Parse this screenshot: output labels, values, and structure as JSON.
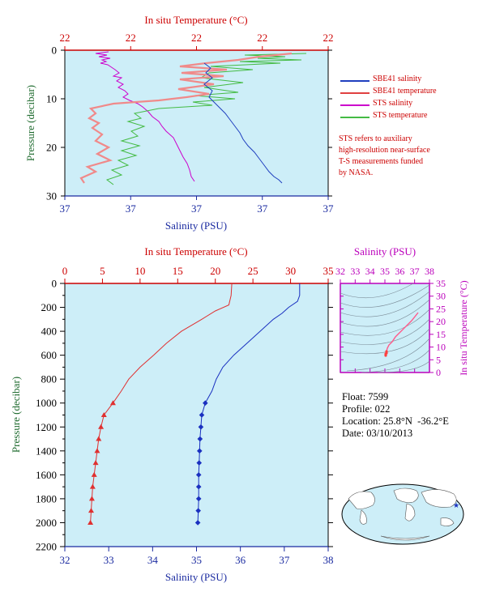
{
  "chart_data": [
    {
      "type": "line",
      "panel": "top",
      "top_axis_title": "In situ Temperature (°C)",
      "bottom_axis_title": "Salinity (PSU)",
      "ylabel": "Pressure (decibar)",
      "temp_ticks": [
        "22",
        "22",
        "22",
        "22",
        "22"
      ],
      "sal_ticks": [
        "37",
        "37",
        "37",
        "37",
        "37"
      ],
      "pressure_ticks": [
        "0",
        "10",
        "20",
        "30"
      ],
      "ylim": [
        0,
        30
      ],
      "grid": false,
      "legend_position": "right",
      "legend": [
        {
          "name": "SBE41 salinity",
          "color": "#1f3fbf"
        },
        {
          "name": "SBE41 temperature",
          "color": "#e04040"
        },
        {
          "name": "STS salinity",
          "color": "#cc00cc"
        },
        {
          "name": "STS temperature",
          "color": "#44bb44"
        }
      ],
      "note": [
        "STS refers to auxiliary",
        "high-resolution near-surface",
        "T-S measurements funded",
        "by NASA."
      ]
    },
    {
      "type": "line",
      "panel": "main",
      "top_axis_title": "In situ Temperature (°C)",
      "bottom_axis_title": "Salinity (PSU)",
      "ylabel": "Pressure (decibar)",
      "xlim_temperature": [
        0,
        35
      ],
      "xlim_salinity": [
        32,
        38
      ],
      "ylim": [
        0,
        2200
      ],
      "temp_ticks": [
        "0",
        "5",
        "10",
        "15",
        "20",
        "25",
        "30",
        "35"
      ],
      "sal_ticks": [
        "32",
        "33",
        "34",
        "35",
        "36",
        "37",
        "38"
      ],
      "pressure_ticks": [
        "0",
        "200",
        "400",
        "600",
        "800",
        "1000",
        "1200",
        "1400",
        "1600",
        "1800",
        "2000",
        "2200"
      ],
      "grid": false,
      "series": [
        {
          "name": "SBE41 temperature",
          "color": "#e03030",
          "pressure": [
            0,
            100,
            180,
            230,
            300,
            400,
            500,
            600,
            700,
            800,
            900,
            1000,
            1100,
            1200,
            1300,
            1400,
            1500,
            1600,
            1700,
            1800,
            1900,
            2000
          ],
          "values": [
            22.2,
            22.1,
            21.8,
            20.0,
            18.2,
            15.5,
            13.5,
            11.8,
            10.0,
            8.5,
            7.5,
            6.4,
            5.2,
            4.8,
            4.5,
            4.3,
            4.1,
            3.9,
            3.7,
            3.6,
            3.5,
            3.4
          ]
        },
        {
          "name": "SBE41 salinity",
          "color": "#1a30c0",
          "pressure": [
            0,
            100,
            150,
            200,
            250,
            300,
            400,
            500,
            600,
            700,
            800,
            900,
            1000,
            1100,
            1200,
            1300,
            1400,
            1500,
            1600,
            1700,
            1800,
            1900,
            2000
          ],
          "values": [
            37.35,
            37.35,
            37.3,
            37.1,
            36.95,
            36.75,
            36.45,
            36.15,
            35.85,
            35.6,
            35.45,
            35.35,
            35.2,
            35.12,
            35.1,
            35.08,
            35.07,
            35.06,
            35.05,
            35.05,
            35.05,
            35.04,
            35.03
          ]
        }
      ],
      "markers_from_pressure": 1000
    },
    {
      "type": "scatter",
      "panel": "ts-inset",
      "top_axis_title": "Salinity (PSU)",
      "right_axis_title": "In situ Temperature (°C)",
      "xlim": [
        32,
        38
      ],
      "ylim": [
        0,
        35
      ],
      "sal_ticks": [
        "32",
        "33",
        "34",
        "35",
        "36",
        "37",
        "38"
      ],
      "temp_ticks": [
        "0",
        "5",
        "10",
        "15",
        "20",
        "25",
        "30",
        "35"
      ],
      "grid": false
    }
  ],
  "info": {
    "float_label": "Float:",
    "float": "7599",
    "profile_label": "Profile:",
    "profile": "022",
    "location_label": "Location:",
    "location": "25.8°N  -36.2°E",
    "date_label": "Date:",
    "date": "03/10/2013"
  },
  "colors": {
    "panel_bg": "#cdeef8",
    "temp_axis": "#cc0000",
    "sal_axis": "#1a2aa0",
    "pressure_axis": "#1f6b2f",
    "inset_axis": "#bb00bb"
  }
}
